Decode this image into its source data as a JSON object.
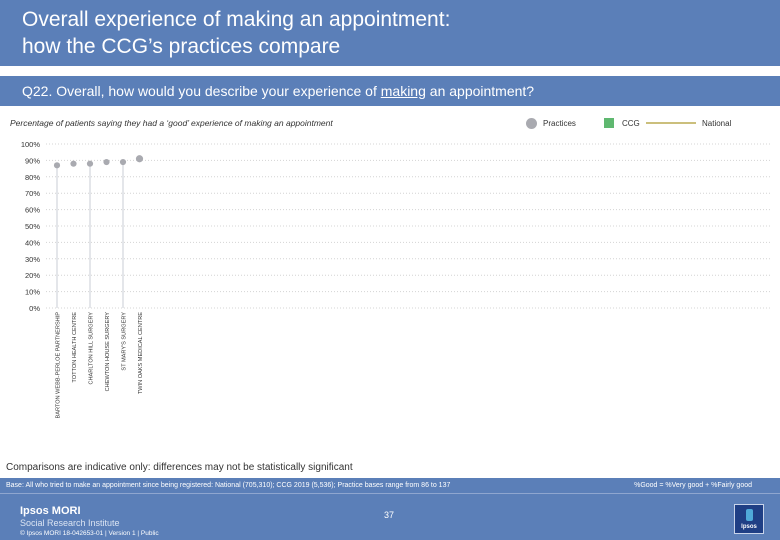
{
  "header": {
    "title": "Overall experience of making an appointment:\nhow the CCG’s practices compare"
  },
  "question": {
    "before": "Q22. Overall, how would you describe your experience of ",
    "underlined": "making",
    "after": " an appointment?"
  },
  "chart_data": {
    "type": "scatter",
    "title": "Percentage of patients saying they had a ‘good’ experience of making an appointment",
    "legend": {
      "practices": "Practices",
      "ccg": "CCG",
      "national": "National"
    },
    "colors": {
      "practices": "#a9aab0",
      "ccg": "#5fb870",
      "national": "#cbbf7c",
      "highlight": "#c9ccd6"
    },
    "ylim": [
      0,
      100
    ],
    "yticks": [
      "0%",
      "10%",
      "20%",
      "30%",
      "40%",
      "50%",
      "60%",
      "70%",
      "80%",
      "90%",
      "100%"
    ],
    "categories": [
      "BARTON WEBB-PERLOE PARTNERSHIP",
      "TOTTON HEALTH CENTRE",
      "CHARLTON HILL SURGERY",
      "CHEWTON HOUSE SURGERY",
      "ST MARY'S SURGERY",
      "TWIN OAKS MEDICAL CENTRE"
    ],
    "values": [
      87,
      88,
      88,
      89,
      89,
      91
    ]
  },
  "notes": {
    "caveat": "Comparisons are indicative only: differences may not be statistically significant"
  },
  "footer": {
    "base": "Base: All who tried to make an appointment since being registered: National (705,310); CCG 2019 (5,536); Practice bases range from 86 to 137",
    "good_definition": "%Good = %Very good + %Fairly good",
    "brand_name": "Ipsos MORI",
    "brand_subtitle": "Social Research Institute",
    "copyright": "© Ipsos MORI      18-042653-01 | Version 1 | Public",
    "page_number": "37",
    "logo_text": "Ipsos"
  }
}
